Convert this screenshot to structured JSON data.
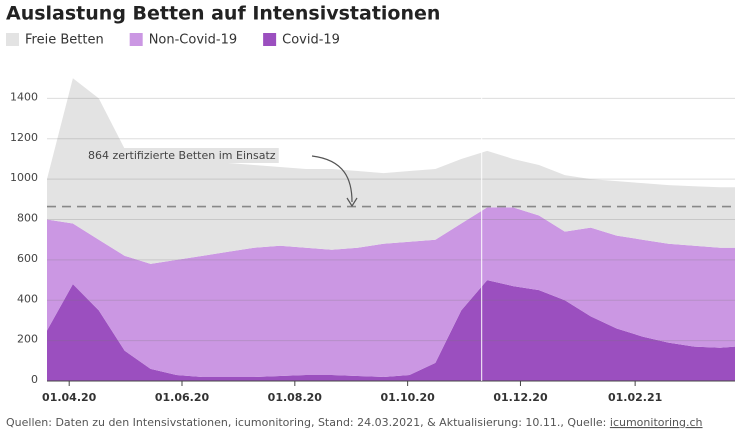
{
  "chart_data": {
    "type": "stacked-area",
    "title": "Auslastung Betten auf Intensivstationen",
    "x": [
      "2020-03-20",
      "2020-04-03",
      "2020-04-17",
      "2020-05-01",
      "2020-05-15",
      "2020-05-29",
      "2020-06-12",
      "2020-06-26",
      "2020-07-10",
      "2020-07-24",
      "2020-08-07",
      "2020-08-21",
      "2020-09-04",
      "2020-09-18",
      "2020-10-02",
      "2020-10-16",
      "2020-10-30",
      "2020-11-13",
      "2020-11-27",
      "2020-12-11",
      "2020-12-25",
      "2021-01-08",
      "2021-01-22",
      "2021-02-05",
      "2021-02-19",
      "2021-03-05",
      "2021-03-19",
      "2021-03-27"
    ],
    "series": [
      {
        "name": "Covid-19",
        "color": "#9b4fbf",
        "values": [
          250,
          480,
          350,
          150,
          60,
          30,
          20,
          20,
          20,
          25,
          30,
          30,
          25,
          20,
          30,
          90,
          350,
          500,
          470,
          450,
          400,
          320,
          260,
          220,
          190,
          170,
          165,
          170
        ]
      },
      {
        "name": "Non-Covid-19",
        "color": "#cb97e3",
        "values": [
          550,
          300,
          350,
          470,
          520,
          570,
          600,
          620,
          640,
          645,
          630,
          620,
          635,
          660,
          660,
          610,
          430,
          360,
          390,
          370,
          340,
          440,
          460,
          480,
          490,
          500,
          495,
          490
        ]
      },
      {
        "name": "Freie Betten",
        "color": "#e3e3e3",
        "values": [
          200,
          720,
          700,
          530,
          520,
          490,
          460,
          440,
          410,
          390,
          390,
          400,
          380,
          350,
          350,
          350,
          320,
          280,
          240,
          250,
          280,
          240,
          270,
          280,
          290,
          295,
          300,
          300
        ]
      }
    ],
    "legend_order": [
      "Freie Betten",
      "Non-Covid-19",
      "Covid-19"
    ],
    "xlim": [
      "2020-03-20",
      "2021-03-27"
    ],
    "xticks": [
      {
        "value": "2020-04-01",
        "label": "01.04.20"
      },
      {
        "value": "2020-06-01",
        "label": "01.06.20"
      },
      {
        "value": "2020-08-01",
        "label": "01.08.20"
      },
      {
        "value": "2020-10-01",
        "label": "01.10.20"
      },
      {
        "value": "2020-12-01",
        "label": "01.12.20"
      },
      {
        "value": "2021-02-01",
        "label": "01.02.21"
      }
    ],
    "ylim": [
      0,
      1600
    ],
    "yticks": [
      0,
      200,
      400,
      600,
      800,
      1000,
      1200,
      1400
    ],
    "grid": true,
    "reference_line": {
      "value": 864,
      "label": "864 zertifizierte Betten im Einsatz"
    },
    "update_line_x": "2020-11-10",
    "source": "Quellen: Daten zu den Intensivstationen, icumonitoring, Stand: 24.03.2021, & Aktualisierung: 10.11., Quelle: ",
    "source_link": "icumonitoring.ch"
  }
}
